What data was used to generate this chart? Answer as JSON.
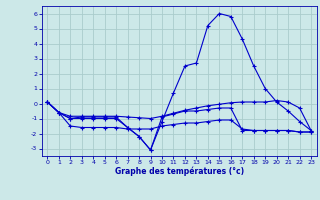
{
  "background_color": "#cce8e8",
  "grid_color": "#aacccc",
  "line_color": "#0000cc",
  "ylim": [
    -3.5,
    6.5
  ],
  "xlim": [
    -0.5,
    23.5
  ],
  "yticks": [
    -3,
    -2,
    -1,
    0,
    1,
    2,
    3,
    4,
    5,
    6
  ],
  "xticks": [
    0,
    1,
    2,
    3,
    4,
    5,
    6,
    7,
    8,
    9,
    10,
    11,
    12,
    13,
    14,
    15,
    16,
    17,
    18,
    19,
    20,
    21,
    22,
    23
  ],
  "xlabel": "Graphe des températures (°c)",
  "line1_x": [
    0,
    1,
    2,
    3,
    4,
    5,
    6,
    7,
    8,
    9,
    10,
    11,
    12,
    13,
    14,
    15,
    16,
    17,
    18,
    19,
    20,
    21,
    22,
    23
  ],
  "line1_y": [
    0.1,
    -0.6,
    -1.0,
    -0.9,
    -0.9,
    -0.9,
    -0.9,
    -1.6,
    -2.2,
    -3.1,
    -1.2,
    0.7,
    2.5,
    2.7,
    5.2,
    6.0,
    5.8,
    4.3,
    2.5,
    1.0,
    0.1,
    -0.5,
    -1.2,
    -1.8
  ],
  "line2_x": [
    0,
    1,
    2,
    3,
    4,
    5,
    6,
    7,
    8,
    9,
    10,
    11,
    12,
    13,
    14,
    15,
    16,
    17,
    18,
    19,
    20,
    21,
    22,
    23
  ],
  "line2_y": [
    0.1,
    -0.6,
    -0.85,
    -0.85,
    -0.85,
    -0.85,
    -0.85,
    -0.9,
    -0.95,
    -1.0,
    -0.85,
    -0.65,
    -0.45,
    -0.3,
    -0.15,
    -0.05,
    0.05,
    0.1,
    0.1,
    0.1,
    0.2,
    0.1,
    -0.3,
    -1.8
  ],
  "line3_x": [
    0,
    1,
    2,
    3,
    4,
    5,
    6,
    7,
    8,
    9,
    10,
    11,
    12,
    13,
    14,
    15,
    16,
    17,
    18,
    19,
    20,
    21,
    22,
    23
  ],
  "line3_y": [
    0.1,
    -0.6,
    -1.5,
    -1.6,
    -1.6,
    -1.6,
    -1.6,
    -1.7,
    -1.7,
    -1.7,
    -1.5,
    -1.4,
    -1.3,
    -1.3,
    -1.2,
    -1.1,
    -1.1,
    -1.7,
    -1.8,
    -1.8,
    -1.8,
    -1.8,
    -1.9,
    -1.9
  ],
  "line4_x": [
    0,
    1,
    2,
    3,
    4,
    5,
    6,
    7,
    8,
    9,
    10,
    11,
    12,
    13,
    14,
    15,
    16,
    17,
    18,
    19,
    20,
    21,
    22,
    23
  ],
  "line4_y": [
    0.1,
    -0.6,
    -1.0,
    -1.0,
    -1.0,
    -1.0,
    -1.0,
    -1.6,
    -2.2,
    -3.1,
    -0.9,
    -0.7,
    -0.5,
    -0.5,
    -0.4,
    -0.3,
    -0.3,
    -1.8,
    -1.8,
    -1.8,
    -1.8,
    -1.8,
    -1.9,
    -1.9
  ]
}
